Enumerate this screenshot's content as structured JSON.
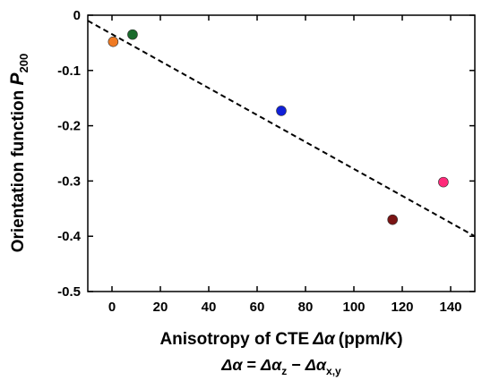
{
  "chart_data": {
    "type": "scatter",
    "xlabel_prefix": "Anisotropy of CTE",
    "xlabel_symbol": "Δα",
    "xlabel_unit": "(ppm/K)",
    "ylabel_main": "Orientation function ",
    "ylabel_symbol": "P",
    "ylabel_subscript": "200",
    "formula": {
      "lhs": "Δα",
      "eq": " = ",
      "term1": "Δα",
      "sub1": "z",
      "minus": " − ",
      "term2": "Δα",
      "sub2": "x,y"
    },
    "xlim": [
      -10,
      150
    ],
    "ylim": [
      -0.5,
      0
    ],
    "x_ticks": [
      0,
      20,
      40,
      60,
      80,
      100,
      120,
      140
    ],
    "x_tick_labels": [
      "0",
      "20",
      "40",
      "60",
      "80",
      "100",
      "120",
      "140"
    ],
    "y_ticks": [
      0,
      -0.1,
      -0.2,
      -0.3,
      -0.4,
      -0.5
    ],
    "y_tick_labels": [
      "0",
      "-0.1",
      "-0.2",
      "-0.3",
      "-0.4",
      "-0.5"
    ],
    "grid": false,
    "points": [
      {
        "x": 0.5,
        "y": -0.048,
        "color": "#f07a22"
      },
      {
        "x": 8.5,
        "y": -0.035,
        "color": "#1a6b2c"
      },
      {
        "x": 70,
        "y": -0.173,
        "color": "#1020d8"
      },
      {
        "x": 116,
        "y": -0.37,
        "color": "#7a1414"
      },
      {
        "x": 137,
        "y": -0.302,
        "color": "#ff2a7a"
      }
    ],
    "trendline": {
      "x": [
        -10,
        150
      ],
      "y": [
        -0.01,
        -0.4
      ],
      "style": "dashed",
      "color": "#000000"
    }
  }
}
